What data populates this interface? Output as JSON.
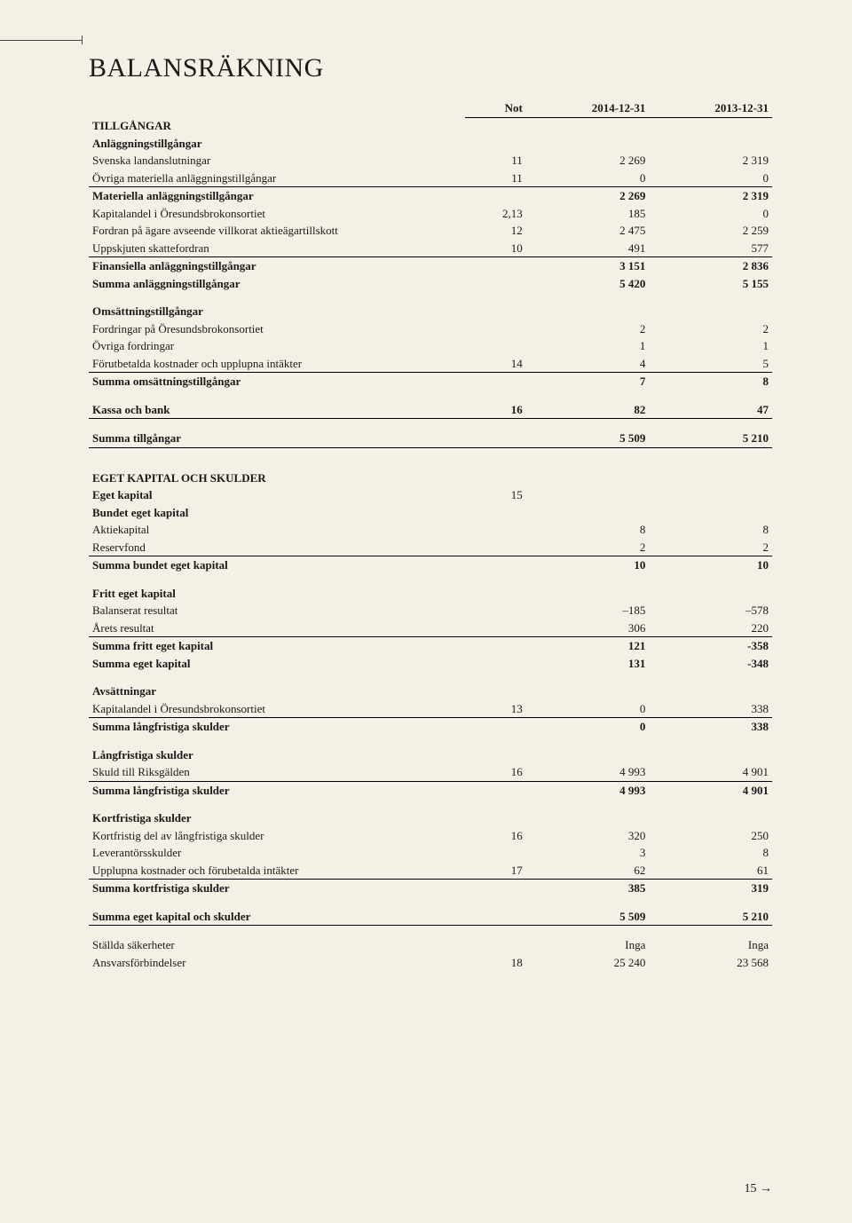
{
  "page_title": "BALANSRÄKNING",
  "col_headers": {
    "not": "Not",
    "y1": "2014-12-31",
    "y2": "2013-12-31"
  },
  "tillgangar": {
    "heading": "TILLGÅNGAR",
    "anl_heading": "Anläggningstillgångar",
    "rows": [
      {
        "label": "Svenska landanslutningar",
        "not": "11",
        "v1": "2 269",
        "v2": "2 319"
      },
      {
        "label": "Övriga materiella anläggningstillgångar",
        "not": "11",
        "v1": "0",
        "v2": "0",
        "uline": true
      },
      {
        "label": "Materiella anläggningstillgångar",
        "bold": true,
        "v1": "2 269",
        "v2": "2 319"
      },
      {
        "label": "Kapitalandel i Öresundsbrokonsortiet",
        "not": "2,13",
        "v1": "185",
        "v2": "0"
      },
      {
        "label": "Fordran på ägare avseende villkorat aktieägartillskott",
        "not": "12",
        "v1": "2 475",
        "v2": "2 259"
      },
      {
        "label": "Uppskjuten skattefordran",
        "not": "10",
        "v1": "491",
        "v2": "577",
        "uline": true
      },
      {
        "label": "Finansiella anläggningstillgångar",
        "bold": true,
        "v1": "3 151",
        "v2": "2 836"
      },
      {
        "label": "Summa anläggningstillgångar",
        "bold": true,
        "v1": "5 420",
        "v2": "5 155"
      }
    ],
    "oms_heading": "Omsättningstillgångar",
    "oms_rows": [
      {
        "label": "Fordringar på Öresundsbrokonsortiet",
        "v1": "2",
        "v2": "2"
      },
      {
        "label": "Övriga fordringar",
        "v1": "1",
        "v2": "1"
      },
      {
        "label": "Förutbetalda kostnader och upplupna intäkter",
        "not": "14",
        "v1": "4",
        "v2": "5",
        "uline": true
      },
      {
        "label": "Summa omsättningstillgångar",
        "bold": true,
        "v1": "7",
        "v2": "8"
      }
    ],
    "kassa": {
      "label": "Kassa och bank",
      "not": "16",
      "v1": "82",
      "v2": "47"
    },
    "summa": {
      "label": "Summa tillgångar",
      "v1": "5 509",
      "v2": "5 210"
    }
  },
  "ek": {
    "heading": "EGET KAPITAL OCH SKULDER",
    "eget_kapital": {
      "label": "Eget kapital",
      "not": "15"
    },
    "bundet_heading": "Bundet eget kapital",
    "bundet_rows": [
      {
        "label": "Aktiekapital",
        "v1": "8",
        "v2": "8"
      },
      {
        "label": "Reservfond",
        "v1": "2",
        "v2": "2",
        "uline": true
      },
      {
        "label": "Summa bundet eget kapital",
        "bold": true,
        "v1": "10",
        "v2": "10"
      }
    ],
    "fritt_heading": "Fritt eget kapital",
    "fritt_rows": [
      {
        "label": "Balanserat resultat",
        "v1": "–185",
        "v2": "–578"
      },
      {
        "label": "Årets resultat",
        "v1": "306",
        "v2": "220",
        "uline": true
      },
      {
        "label": "Summa fritt eget kapital",
        "bold": true,
        "v1": "121",
        "v2": "-358"
      },
      {
        "label": "Summa eget kapital",
        "bold": true,
        "v1": "131",
        "v2": "-348"
      }
    ],
    "avs_heading": "Avsättningar",
    "avs_rows": [
      {
        "label": "Kapitalandel i Öresundsbrokonsortiet",
        "not": "13",
        "v1": "0",
        "v2": "338",
        "uline": true
      },
      {
        "label": "Summa långfristiga skulder",
        "bold": true,
        "v1": "0",
        "v2": "338"
      }
    ],
    "lang_heading": "Långfristiga skulder",
    "lang_rows": [
      {
        "label": "Skuld till Riksgälden",
        "not": "16",
        "v1": "4 993",
        "v2": "4 901",
        "uline": true
      },
      {
        "label": "Summa långfristiga skulder",
        "bold": true,
        "v1": "4 993",
        "v2": "4 901"
      }
    ],
    "kort_heading": "Kortfristiga skulder",
    "kort_rows": [
      {
        "label": "Kortfristig del av långfristiga skulder",
        "not": "16",
        "v1": "320",
        "v2": "250"
      },
      {
        "label": "Leverantörsskulder",
        "v1": "3",
        "v2": "8"
      },
      {
        "label": "Upplupna kostnader och förubetalda intäkter",
        "not": "17",
        "v1": "62",
        "v2": "61",
        "uline": true
      },
      {
        "label": "Summa kortfristiga skulder",
        "bold": true,
        "v1": "385",
        "v2": "319"
      }
    ],
    "summa": {
      "label": "Summa eget kapital och skulder",
      "v1": "5 509",
      "v2": "5 210"
    },
    "footer": [
      {
        "label": "Ställda säkerheter",
        "v1": "Inga",
        "v2": "Inga"
      },
      {
        "label": "Ansvarsförbindelser",
        "not": "18",
        "v1": "25 240",
        "v2": "23 568"
      }
    ]
  },
  "page_number": "15",
  "page_arrow": "→"
}
